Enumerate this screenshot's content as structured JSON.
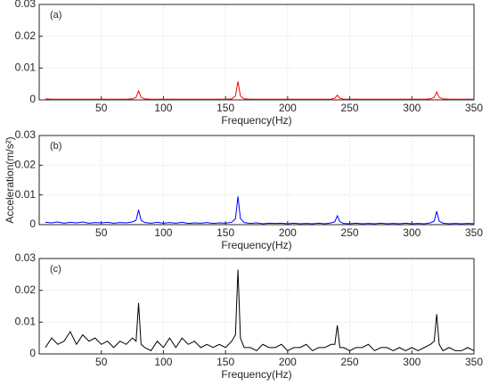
{
  "chart_data": [
    {
      "type": "line",
      "label": "(a)",
      "xlabel": "Frequency(Hz)",
      "color": "#ff0000",
      "grid": true,
      "xlim": [
        0,
        350
      ],
      "xticks": [
        50,
        100,
        150,
        200,
        250,
        300,
        350
      ],
      "ylim": [
        0,
        0.03
      ],
      "yticks": [
        0,
        0.01,
        0.02,
        0.03
      ],
      "x": [
        5,
        10,
        15,
        20,
        25,
        30,
        35,
        40,
        45,
        50,
        55,
        60,
        65,
        70,
        75,
        78,
        80,
        82,
        85,
        90,
        95,
        100,
        105,
        110,
        115,
        120,
        125,
        130,
        135,
        140,
        145,
        150,
        155,
        158,
        160,
        162,
        165,
        170,
        175,
        180,
        185,
        190,
        195,
        200,
        205,
        210,
        215,
        220,
        225,
        230,
        235,
        238,
        240,
        242,
        245,
        250,
        255,
        260,
        265,
        270,
        275,
        280,
        285,
        290,
        295,
        300,
        305,
        310,
        315,
        318,
        320,
        322,
        325,
        330,
        335,
        340,
        345,
        350
      ],
      "values": [
        0.0003,
        0.0002,
        0.0002,
        0.0002,
        0.0002,
        0.0002,
        0.0002,
        0.0002,
        0.0002,
        0.0002,
        0.0002,
        0.0002,
        0.0002,
        0.0002,
        0.0003,
        0.0008,
        0.0028,
        0.0008,
        0.0003,
        0.0002,
        0.0002,
        0.0002,
        0.0002,
        0.0002,
        0.0002,
        0.0002,
        0.0002,
        0.0002,
        0.0002,
        0.0002,
        0.0002,
        0.0002,
        0.0003,
        0.0012,
        0.0058,
        0.0012,
        0.0003,
        0.0002,
        0.0002,
        0.0002,
        0.0002,
        0.0002,
        0.0002,
        0.0002,
        0.0002,
        0.0002,
        0.0002,
        0.0002,
        0.0002,
        0.0002,
        0.0002,
        0.0005,
        0.0015,
        0.0005,
        0.0002,
        0.0002,
        0.0002,
        0.0002,
        0.0002,
        0.0002,
        0.0002,
        0.0002,
        0.0002,
        0.0002,
        0.0002,
        0.0002,
        0.0002,
        0.0002,
        0.0003,
        0.0008,
        0.0025,
        0.0008,
        0.0003,
        0.0002,
        0.0002,
        0.0002,
        0.0002,
        0.0002
      ]
    },
    {
      "type": "line",
      "label": "(b)",
      "xlabel": "Frequency(Hz)",
      "ylabel": "Acceleration(m/s²)",
      "color": "#0000ff",
      "grid": true,
      "xlim": [
        0,
        350
      ],
      "xticks": [
        50,
        100,
        150,
        200,
        250,
        300,
        350
      ],
      "ylim": [
        0,
        0.03
      ],
      "yticks": [
        0,
        0.01,
        0.02,
        0.03
      ],
      "x": [
        5,
        10,
        15,
        20,
        25,
        30,
        35,
        40,
        45,
        50,
        55,
        60,
        65,
        70,
        75,
        78,
        80,
        82,
        85,
        90,
        95,
        100,
        105,
        110,
        115,
        120,
        125,
        130,
        135,
        140,
        145,
        150,
        155,
        158,
        160,
        162,
        165,
        170,
        175,
        180,
        185,
        190,
        195,
        200,
        205,
        210,
        215,
        220,
        225,
        230,
        235,
        238,
        240,
        242,
        245,
        250,
        255,
        260,
        265,
        270,
        275,
        280,
        285,
        290,
        295,
        300,
        305,
        310,
        315,
        318,
        320,
        322,
        325,
        330,
        335,
        340,
        345,
        350
      ],
      "values": [
        0.0008,
        0.0006,
        0.0009,
        0.0005,
        0.0008,
        0.0006,
        0.0009,
        0.0005,
        0.0007,
        0.0006,
        0.0008,
        0.0005,
        0.0007,
        0.0006,
        0.0009,
        0.0015,
        0.005,
        0.0015,
        0.0007,
        0.0005,
        0.0008,
        0.0005,
        0.0007,
        0.0005,
        0.0008,
        0.0004,
        0.0006,
        0.0005,
        0.0007,
        0.0004,
        0.0006,
        0.0005,
        0.0008,
        0.002,
        0.0095,
        0.002,
        0.0007,
        0.0004,
        0.0006,
        0.0003,
        0.0005,
        0.0004,
        0.0005,
        0.0003,
        0.0005,
        0.0003,
        0.0004,
        0.0003,
        0.0005,
        0.0003,
        0.0006,
        0.001,
        0.003,
        0.001,
        0.0004,
        0.0003,
        0.0005,
        0.0003,
        0.0004,
        0.0003,
        0.0005,
        0.0003,
        0.0004,
        0.0003,
        0.0005,
        0.0003,
        0.0004,
        0.0003,
        0.0006,
        0.0012,
        0.0045,
        0.0012,
        0.0005,
        0.0003,
        0.0004,
        0.0003,
        0.0004,
        0.0003
      ]
    },
    {
      "type": "line",
      "label": "(c)",
      "xlabel": "Frequency(Hz)",
      "color": "#000000",
      "grid": true,
      "xlim": [
        0,
        350
      ],
      "xticks": [
        50,
        100,
        150,
        200,
        250,
        300,
        350
      ],
      "ylim": [
        0,
        0.03
      ],
      "yticks": [
        0,
        0.01,
        0.02,
        0.03
      ],
      "x": [
        5,
        10,
        15,
        20,
        25,
        30,
        35,
        40,
        45,
        50,
        55,
        60,
        65,
        70,
        75,
        78,
        80,
        82,
        85,
        90,
        95,
        100,
        105,
        110,
        115,
        120,
        125,
        130,
        135,
        140,
        145,
        150,
        155,
        158,
        160,
        162,
        165,
        170,
        175,
        180,
        185,
        190,
        195,
        200,
        205,
        210,
        215,
        220,
        225,
        230,
        235,
        238,
        240,
        242,
        245,
        250,
        255,
        260,
        265,
        270,
        275,
        280,
        285,
        290,
        295,
        300,
        305,
        310,
        315,
        318,
        320,
        322,
        325,
        330,
        335,
        340,
        345,
        350
      ],
      "values": [
        0.002,
        0.005,
        0.003,
        0.004,
        0.007,
        0.003,
        0.006,
        0.004,
        0.005,
        0.003,
        0.004,
        0.002,
        0.004,
        0.003,
        0.005,
        0.004,
        0.016,
        0.003,
        0.002,
        0.001,
        0.004,
        0.002,
        0.005,
        0.002,
        0.005,
        0.003,
        0.004,
        0.002,
        0.003,
        0.002,
        0.003,
        0.002,
        0.004,
        0.006,
        0.0265,
        0.005,
        0.002,
        0.002,
        0.001,
        0.003,
        0.002,
        0.002,
        0.003,
        0.001,
        0.002,
        0.002,
        0.003,
        0.001,
        0.002,
        0.002,
        0.003,
        0.003,
        0.009,
        0.002,
        0.002,
        0.001,
        0.002,
        0.002,
        0.003,
        0.001,
        0.002,
        0.002,
        0.001,
        0.002,
        0.001,
        0.002,
        0.001,
        0.002,
        0.003,
        0.004,
        0.0125,
        0.003,
        0.001,
        0.002,
        0.001,
        0.001,
        0.002,
        0.001
      ]
    }
  ]
}
